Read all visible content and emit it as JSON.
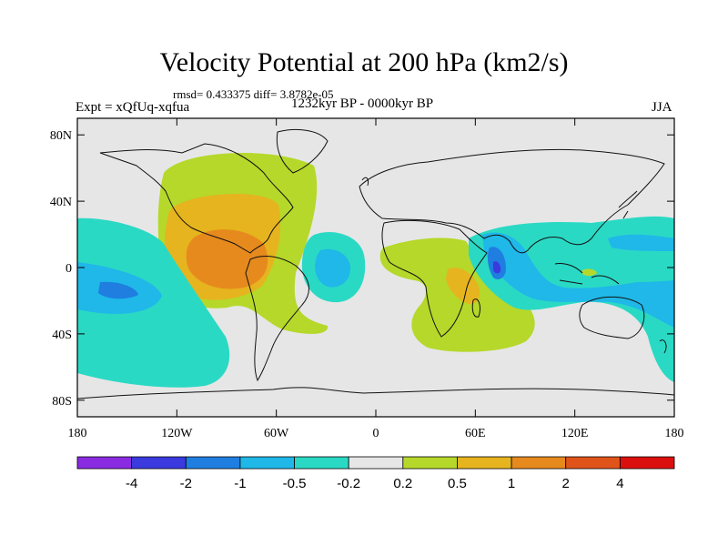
{
  "title": "Velocity Potential at 200 hPa (km2/s)",
  "stats": "rmsd= 0.433375 diff= 3.8782e-05",
  "left_label": "Expt = xQfUq-xqfua",
  "center_label": "1232kyr BP - 0000kyr BP",
  "season": "JJA",
  "lat_ticks": [
    "80N",
    "40N",
    "0",
    "40S",
    "80S"
  ],
  "lon_ticks": [
    "180",
    "120W",
    "60W",
    "0",
    "60E",
    "120E",
    "180"
  ],
  "colorbar": {
    "labels": [
      "-4",
      "-2",
      "-1",
      "-0.5",
      "-0.2",
      "0.2",
      "0.5",
      "1",
      "2",
      "4"
    ],
    "colors": [
      "#8a2be2",
      "#3a3adf",
      "#1f7ee0",
      "#1fb8e8",
      "#2ad9c4",
      "#e6e6e6",
      "#b5d82a",
      "#e6b41e",
      "#e68a1e",
      "#e0541a",
      "#dc0f0f"
    ]
  },
  "palette": {
    "background": "#e6e6e6",
    "pos_weak": "#b5d82a",
    "pos_mid": "#e6b41e",
    "pos_strong": "#e68a1e",
    "neg_weak": "#2ad9c4",
    "neg_mid": "#1fb8e8",
    "neg_strong": "#1f7ee0",
    "neg_stronger": "#3a3adf"
  }
}
